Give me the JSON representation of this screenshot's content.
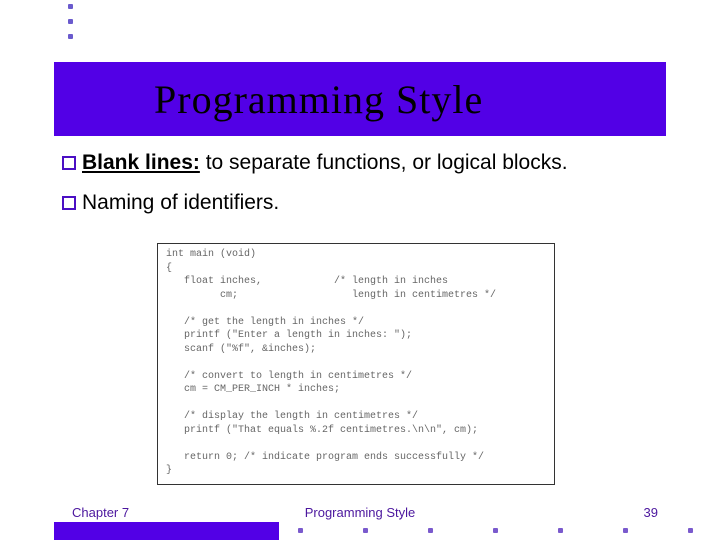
{
  "colors": {
    "banner_bg": "#5200e6",
    "accent": "#4b0fc4",
    "footer_text": "#4b169e",
    "dot": "#6a5acd",
    "code_border": "#333333",
    "code_text": "#666666"
  },
  "title": "Programming Style",
  "bullets": [
    {
      "emph": "Blank lines:",
      "rest": " to separate functions, or logical blocks."
    },
    {
      "emph": "",
      "rest": "Naming of identifiers."
    }
  ],
  "code": "int main (void)\n{\n   float inches,            /* length in inches\n         cm;                   length in centimetres */\n\n   /* get the length in inches */\n   printf (\"Enter a length in inches: \");\n   scanf (\"%f\", &inches);\n\n   /* convert to length in centimetres */\n   cm = CM_PER_INCH * inches;\n\n   /* display the length in centimetres */\n   printf (\"That equals %.2f centimetres.\\n\\n\", cm);\n\n   return 0; /* indicate program ends successfully */\n}",
  "footer": {
    "chapter": "Chapter 7",
    "title": "Programming Style",
    "page": "39"
  }
}
